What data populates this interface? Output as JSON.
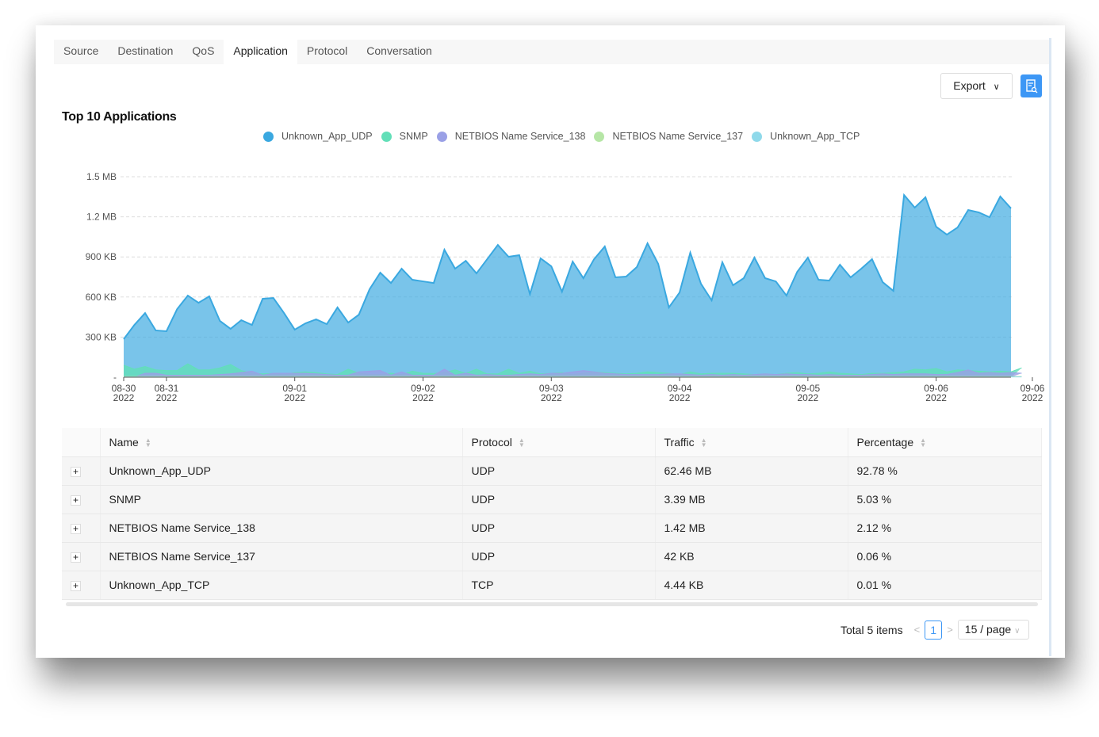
{
  "tabs": [
    "Source",
    "Destination",
    "QoS",
    "Application",
    "Protocol",
    "Conversation"
  ],
  "active_tab": "Application",
  "toolbar": {
    "export_label": "Export",
    "report_icon": "report-search-icon"
  },
  "title": "Top 10 Applications",
  "chart_data": {
    "type": "area",
    "legend": [
      "Unknown_App_UDP",
      "SNMP",
      "NETBIOS Name Service_138",
      "NETBIOS Name Service_137",
      "Unknown_App_TCP"
    ],
    "legend_placement": "top",
    "colors": [
      "#3aa8e0",
      "#62dfb8",
      "#9aa0e6",
      "#b6e6a6",
      "#8fd9ea"
    ],
    "y_ticks": [
      "-",
      "300 KB",
      "600 KB",
      "900 KB",
      "1.2 MB",
      "1.5 MB"
    ],
    "y_unit": "KB",
    "ylim": [
      0,
      1500
    ],
    "grid": true,
    "x_ticks": [
      {
        "date": "08-30",
        "year": "2022",
        "index": 0
      },
      {
        "date": "08-31",
        "year": "2022",
        "index": 4
      },
      {
        "date": "09-01",
        "year": "2022",
        "index": 16
      },
      {
        "date": "09-02",
        "year": "2022",
        "index": 28
      },
      {
        "date": "09-03",
        "year": "2022",
        "index": 40
      },
      {
        "date": "09-04",
        "year": "2022",
        "index": 52
      },
      {
        "date": "09-05",
        "year": "2022",
        "index": 64
      },
      {
        "date": "09-06",
        "year": "2022",
        "index": 76
      },
      {
        "date": "09-06",
        "year": "2022",
        "index": 85
      }
    ],
    "series": [
      {
        "name": "Unknown_App_UDP",
        "values": [
          285,
          391,
          480,
          350,
          344,
          510,
          611,
          557,
          605,
          421,
          362,
          427,
          391,
          587,
          593,
          480,
          356,
          403,
          433,
          397,
          522,
          409,
          468,
          658,
          782,
          705,
          812,
          729,
          717,
          705,
          954,
          812,
          871,
          777,
          883,
          990,
          901,
          913,
          622,
          889,
          830,
          640,
          865,
          741,
          883,
          978,
          747,
          753,
          824,
          1002,
          848,
          522,
          634,
          931,
          699,
          575,
          860,
          688,
          741,
          895,
          741,
          717,
          611,
          788,
          895,
          729,
          723,
          842,
          747,
          812,
          883,
          711,
          646,
          1363,
          1269,
          1346,
          1126,
          1067,
          1120,
          1251,
          1233,
          1197,
          1352,
          1263
        ]
      },
      {
        "name": "SNMP",
        "values": [
          90,
          60,
          80,
          55,
          50,
          50,
          100,
          55,
          55,
          70,
          95,
          50,
          30,
          25,
          28,
          20,
          35,
          40,
          35,
          25,
          20,
          60,
          30,
          20,
          20,
          30,
          20,
          45,
          30,
          28,
          35,
          55,
          30,
          60,
          25,
          25,
          60,
          30,
          45,
          25,
          30,
          35,
          20,
          30,
          40,
          35,
          30,
          25,
          30,
          40,
          35,
          30,
          20,
          40,
          25,
          30,
          30,
          30,
          25,
          20,
          25,
          20,
          30,
          35,
          25,
          30,
          40,
          30,
          25,
          20,
          30,
          30,
          35,
          40,
          60,
          55,
          65,
          40,
          55,
          50,
          45,
          40,
          45,
          40,
          70
        ]
      },
      {
        "name": "NETBIOS Name Service_138",
        "values": [
          0,
          0,
          30,
          30,
          15,
          15,
          15,
          15,
          15,
          20,
          25,
          35,
          45,
          15,
          30,
          30,
          30,
          30,
          25,
          20,
          15,
          15,
          40,
          45,
          50,
          15,
          40,
          15,
          15,
          15,
          60,
          15,
          30,
          15,
          20,
          15,
          15,
          20,
          25,
          20,
          30,
          30,
          40,
          50,
          40,
          30,
          25,
          20,
          20,
          20,
          20,
          25,
          25,
          20,
          15,
          20,
          15,
          20,
          15,
          20,
          25,
          20,
          25,
          20,
          20,
          15,
          20,
          15,
          15,
          15,
          20,
          25,
          20,
          25,
          25,
          25,
          20,
          20,
          35,
          55,
          30,
          35,
          30,
          35,
          30
        ]
      },
      {
        "name": "NETBIOS Name Service_137",
        "values": [
          5,
          5,
          5,
          5,
          5,
          5,
          5,
          5,
          5,
          5,
          5,
          5,
          5,
          5,
          5,
          5,
          5,
          5,
          5,
          5,
          5,
          5,
          5,
          5,
          5,
          5,
          5,
          5,
          5,
          5,
          5,
          5,
          5,
          5,
          5,
          5,
          5,
          5,
          5,
          5,
          5,
          5,
          5,
          5,
          5,
          5,
          5,
          5,
          5,
          5,
          5,
          5,
          5,
          5,
          5,
          5,
          5,
          5,
          5,
          5,
          5,
          5,
          5,
          5,
          5,
          5,
          5,
          5,
          5,
          5,
          5,
          5,
          5,
          5,
          5,
          5,
          5,
          5,
          5,
          5,
          5,
          5,
          5,
          5,
          5
        ]
      },
      {
        "name": "Unknown_App_TCP",
        "values": [
          2,
          2,
          2,
          2,
          2,
          2,
          2,
          2,
          2,
          2,
          2,
          2,
          2,
          2,
          2,
          2,
          2,
          2,
          2,
          2,
          2,
          2,
          2,
          2,
          2,
          2,
          2,
          2,
          2,
          2,
          2,
          2,
          2,
          2,
          2,
          2,
          2,
          2,
          2,
          2,
          2,
          2,
          2,
          2,
          2,
          2,
          2,
          2,
          2,
          2,
          2,
          2,
          2,
          2,
          2,
          2,
          2,
          2,
          2,
          2,
          2,
          2,
          2,
          2,
          2,
          2,
          2,
          2,
          2,
          2,
          2,
          2,
          2,
          2,
          2,
          2,
          2,
          2,
          2,
          2,
          2,
          2,
          2,
          2,
          2
        ]
      }
    ]
  },
  "table": {
    "columns": [
      "Name",
      "Protocol",
      "Traffic",
      "Percentage"
    ],
    "rows": [
      {
        "name": "Unknown_App_UDP",
        "protocol": "UDP",
        "traffic": "62.46 MB",
        "percentage": "92.78 %"
      },
      {
        "name": "SNMP",
        "protocol": "UDP",
        "traffic": "3.39 MB",
        "percentage": "5.03 %"
      },
      {
        "name": "NETBIOS Name Service_138",
        "protocol": "UDP",
        "traffic": "1.42 MB",
        "percentage": "2.12 %"
      },
      {
        "name": "NETBIOS Name Service_137",
        "protocol": "UDP",
        "traffic": "42 KB",
        "percentage": "0.06 %"
      },
      {
        "name": "Unknown_App_TCP",
        "protocol": "TCP",
        "traffic": "4.44 KB",
        "percentage": "0.01 %"
      }
    ]
  },
  "pagination": {
    "total": "Total 5 items",
    "page": "1",
    "page_size": "15 / page"
  }
}
